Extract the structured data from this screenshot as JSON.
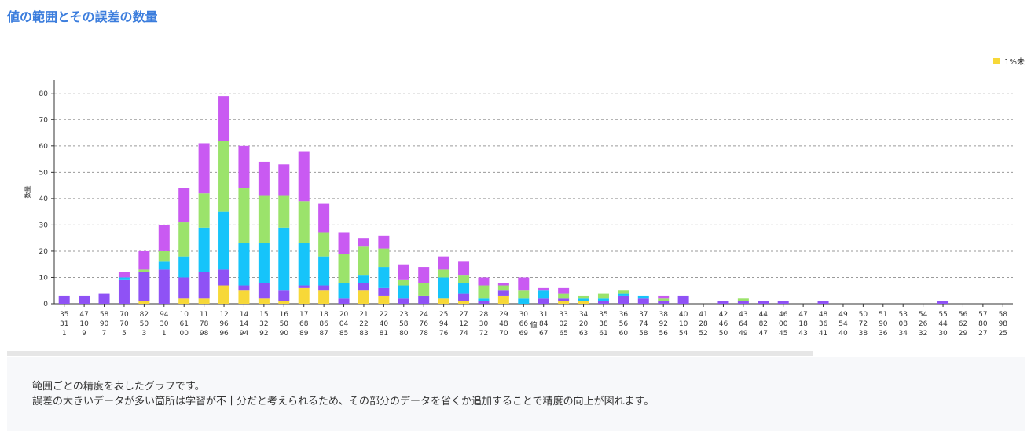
{
  "page": {
    "title": "値の範囲とその誤差の数量",
    "description_line1": "範囲ごとの精度を表したグラフです。",
    "description_line2": "誤差の大きいデータが多い箇所は学習が不十分だと考えられるため、その部分のデータを省くか追加することで精度の向上が図れます。"
  },
  "chart_data": {
    "type": "bar",
    "stacked": true,
    "ylabel": "数量",
    "xlabel": "値",
    "ylim": [
      0,
      85
    ],
    "yticks": [
      0,
      10,
      20,
      30,
      40,
      50,
      60,
      70,
      80
    ],
    "grid": true,
    "legend_position": "top-right",
    "categories": [
      "35\n31\n1",
      "47\n10\n9",
      "58\n90\n7",
      "70\n70\n5",
      "82\n50\n3",
      "94\n30\n1",
      "10\n61\n00",
      "11\n78\n98",
      "12\n96\n96",
      "14\n14\n94",
      "15\n32\n92",
      "16\n50\n90",
      "17\n68\n89",
      "18\n86\n87",
      "20\n04\n85",
      "21\n22\n83",
      "22\n40\n81",
      "23\n58\n80",
      "24\n76\n78",
      "25\n94\n76",
      "27\n12\n74",
      "28\n30\n72",
      "29\n48\n70",
      "30\n66\n69",
      "31\n84\n67",
      "33\n02\n65",
      "34\n20\n63",
      "35\n38\n61",
      "36\n56\n60",
      "37\n74\n58",
      "38\n92\n56",
      "40\n10\n54",
      "41\n28\n52",
      "42\n46\n50",
      "43\n64\n49",
      "44\n82\n47",
      "46\n00\n45",
      "47\n18\n43",
      "48\n36\n41",
      "49\n54\n40",
      "50\n72\n38",
      "51\n90\n36",
      "53\n08\n34",
      "54\n26\n32",
      "55\n44\n30",
      "56\n62\n29",
      "57\n80\n27",
      "58\n98\n25"
    ],
    "series": [
      {
        "name": "1%未",
        "color": "#f7d838",
        "values": [
          0,
          0,
          0,
          0,
          1,
          0,
          2,
          2,
          7,
          5,
          2,
          1,
          6,
          5,
          0,
          5,
          3,
          0,
          0,
          2,
          1,
          0,
          3,
          0,
          0,
          1,
          1,
          0,
          0,
          0,
          0,
          0,
          0,
          0,
          0,
          0,
          0,
          0,
          0,
          0,
          0,
          0,
          0,
          0,
          0,
          0,
          0,
          0
        ]
      },
      {
        "color": "#8f52f5",
        "values": [
          3,
          3,
          4,
          9,
          11,
          13,
          8,
          10,
          6,
          2,
          6,
          4,
          1,
          2,
          2,
          3,
          3,
          2,
          3,
          0,
          3,
          1,
          2,
          0,
          2,
          1,
          0,
          1,
          3,
          2,
          1,
          3,
          0,
          1,
          1,
          1,
          1,
          0,
          1,
          0,
          0,
          0,
          0,
          0,
          1,
          0,
          0,
          0
        ]
      },
      {
        "color": "#16c4fa",
        "values": [
          0,
          0,
          0,
          1,
          0,
          3,
          8,
          17,
          22,
          16,
          15,
          24,
          16,
          11,
          6,
          3,
          8,
          5,
          0,
          8,
          4,
          1,
          0,
          2,
          3,
          0,
          1,
          1,
          1,
          1,
          0,
          0,
          0,
          0,
          0,
          0,
          0,
          0,
          0,
          0,
          0,
          0,
          0,
          0,
          0,
          0,
          0,
          0
        ]
      },
      {
        "color": "#9be36b",
        "values": [
          0,
          0,
          0,
          0,
          1,
          4,
          13,
          13,
          27,
          21,
          18,
          12,
          16,
          9,
          11,
          11,
          7,
          2,
          5,
          3,
          3,
          5,
          2,
          3,
          0,
          2,
          1,
          2,
          1,
          0,
          1,
          0,
          0,
          0,
          1,
          0,
          0,
          0,
          0,
          0,
          0,
          0,
          0,
          0,
          0,
          0,
          0,
          0
        ]
      },
      {
        "color": "#c95af2",
        "values": [
          0,
          0,
          0,
          2,
          7,
          10,
          13,
          19,
          17,
          16,
          13,
          12,
          19,
          11,
          8,
          3,
          5,
          6,
          6,
          5,
          5,
          3,
          1,
          5,
          1,
          2,
          0,
          0,
          0,
          0,
          1,
          0,
          0,
          0,
          0,
          0,
          0,
          0,
          0,
          0,
          0,
          0,
          0,
          0,
          0,
          0,
          0,
          0
        ]
      }
    ]
  }
}
